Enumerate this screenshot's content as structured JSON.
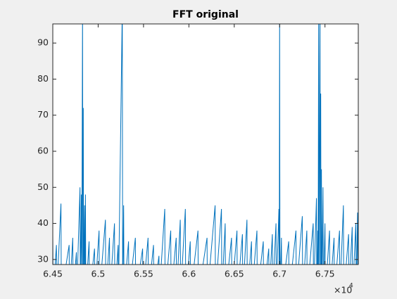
{
  "chart_data": {
    "type": "line",
    "title": "FFT original",
    "x_multiplier": {
      "base": "×10",
      "exponent": "4"
    },
    "x": [
      64500,
      64504,
      64540,
      64544,
      64590,
      64594,
      64680,
      64684,
      64720,
      64724,
      64760,
      64764,
      64800,
      64804,
      64815,
      64819,
      64828,
      64832,
      64836,
      64840,
      64850,
      64854,
      64860,
      64864,
      64900,
      64904,
      64960,
      64964,
      65010,
      65014,
      65080,
      65084,
      65125,
      65129,
      65180,
      65184,
      65220,
      65224,
      65266,
      65270,
      65281,
      65285,
      65335,
      65339,
      65410,
      65414,
      65490,
      65494,
      65550,
      65554,
      65610,
      65614,
      65670,
      65674,
      65734,
      65738,
      65800,
      65804,
      65860,
      65864,
      65905,
      65909,
      65961,
      65965,
      66015,
      66019,
      66100,
      66104,
      66200,
      66204,
      66289,
      66293,
      66359,
      66363,
      66400,
      66404,
      66470,
      66474,
      66530,
      66534,
      66590,
      66594,
      66640,
      66644,
      66690,
      66694,
      66750,
      66754,
      66820,
      66824,
      66880,
      66884,
      66920,
      66924,
      66960,
      66964,
      66992,
      66996,
      67000,
      67004,
      67020,
      67024,
      67100,
      67104,
      67180,
      67184,
      67250,
      67254,
      67300,
      67304,
      67370,
      67374,
      67406,
      67410,
      67420,
      67424,
      67430,
      67434,
      67445,
      67449,
      67453,
      67457,
      67461,
      67465,
      67478,
      67482,
      67500,
      67504,
      67550,
      67554,
      67600,
      67604,
      67660,
      67664,
      67703,
      67707,
      67760,
      67764,
      67800,
      67804,
      67840,
      67844,
      67859,
      67863
    ],
    "series": [
      {
        "name": "FFT",
        "color": "#0072bd",
        "values": [
          37,
          20,
          34,
          20,
          45.5,
          20,
          34,
          20,
          36,
          20,
          32,
          20,
          50,
          20,
          48,
          20,
          100,
          20,
          72,
          20,
          45,
          20,
          48,
          20,
          35,
          20,
          33,
          20,
          38,
          20,
          41,
          20,
          36,
          20,
          40,
          20,
          34,
          20,
          100,
          20,
          45,
          20,
          35,
          20,
          36,
          20,
          33,
          20,
          36,
          20,
          34,
          20,
          31,
          20,
          44,
          20,
          38,
          20,
          36,
          20,
          41,
          20,
          44,
          20,
          35,
          20,
          38,
          20,
          36,
          20,
          45,
          20,
          44,
          20,
          40,
          20,
          36,
          20,
          38,
          20,
          37,
          20,
          41,
          20,
          35,
          20,
          38,
          20,
          35,
          20,
          33,
          20,
          37,
          20,
          40,
          20,
          44,
          20,
          100,
          20,
          36,
          20,
          35,
          20,
          38,
          20,
          42,
          20,
          38,
          20,
          40,
          20,
          47,
          20,
          38,
          20,
          100,
          20,
          100,
          20,
          76,
          20,
          55,
          20,
          50,
          20,
          40,
          20,
          38,
          20,
          36,
          20,
          38,
          20,
          45,
          20,
          37,
          20,
          39,
          20,
          40,
          20,
          43,
          20
        ]
      }
    ],
    "xlim": [
      64500,
      67867
    ],
    "ylim": [
      28.6,
      95.3
    ],
    "xticks": [
      {
        "value": 64500,
        "label": "6.45"
      },
      {
        "value": 65000,
        "label": "6.5"
      },
      {
        "value": 65500,
        "label": "6.55"
      },
      {
        "value": 66000,
        "label": "6.6"
      },
      {
        "value": 66500,
        "label": "6.65"
      },
      {
        "value": 67000,
        "label": "6.7"
      },
      {
        "value": 67500,
        "label": "6.75"
      }
    ],
    "yticks": [
      30,
      40,
      50,
      60,
      70,
      80,
      90
    ],
    "grid": false
  }
}
